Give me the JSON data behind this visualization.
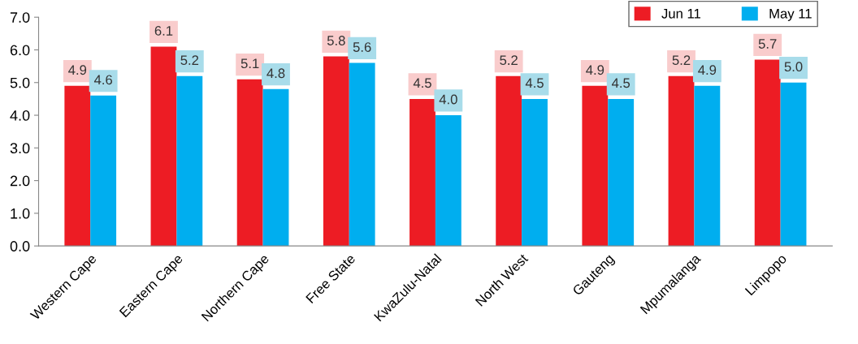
{
  "chart_data": {
    "type": "bar",
    "categories": [
      "Western Cape",
      "Eastern Cape",
      "Northern Cape",
      "Free State",
      "KwaZulu-Natal",
      "North West",
      "Gauteng",
      "Mpumalanga",
      "Limpopo"
    ],
    "series": [
      {
        "name": "Jun 11",
        "color": "#ed1c24",
        "values": [
          4.9,
          6.1,
          5.1,
          5.8,
          4.5,
          5.2,
          4.9,
          5.2,
          5.7
        ],
        "value_labels": [
          "4.9",
          "6.1",
          "5.1",
          "5.8",
          "4.5",
          "5.2",
          "4.9",
          "5.2",
          "5.7"
        ]
      },
      {
        "name": "May 11",
        "color": "#00aeef",
        "values": [
          4.6,
          5.2,
          4.8,
          5.6,
          4.0,
          4.5,
          4.5,
          4.9,
          5.0
        ],
        "value_labels": [
          "4.6",
          "5.2",
          "4.8",
          "5.6",
          "4.0",
          "4.5",
          "4.5",
          "4.9",
          "5.0"
        ]
      }
    ],
    "ylim": [
      0,
      7
    ],
    "yticks": [
      {
        "value": 0,
        "label": "0.0"
      },
      {
        "value": 1,
        "label": "1.0"
      },
      {
        "value": 2,
        "label": "2.0"
      },
      {
        "value": 3,
        "label": "3.0"
      },
      {
        "value": 4,
        "label": "4.0"
      },
      {
        "value": 5,
        "label": "5.0"
      },
      {
        "value": 6,
        "label": "6.0"
      },
      {
        "value": 7,
        "label": "7.0"
      }
    ],
    "grid": false,
    "legend": "top right"
  }
}
